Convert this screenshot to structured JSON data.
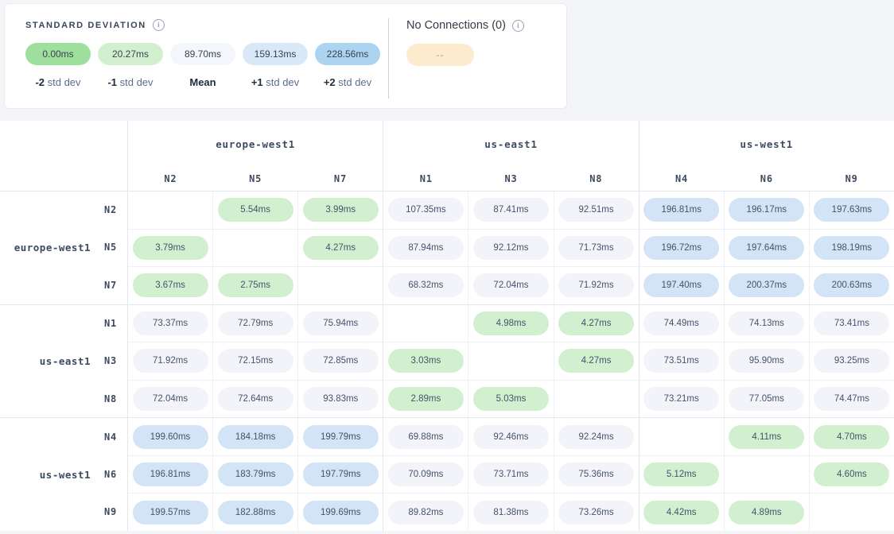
{
  "legend_card": {
    "std_dev": {
      "title": "STANDARD DEVIATION",
      "info_icon": "i",
      "steps": [
        {
          "value": "0.00ms",
          "color": "#9edf9e",
          "label_bold": "-2",
          "label_rest": " std dev"
        },
        {
          "value": "20.27ms",
          "color": "#d2f0cf",
          "label_bold": "-1",
          "label_rest": " std dev"
        },
        {
          "value": "89.70ms",
          "color": "#f3f6fb",
          "label_bold": "Mean",
          "label_rest": ""
        },
        {
          "value": "159.13ms",
          "color": "#d8e8f6",
          "label_bold": "+1",
          "label_rest": " std dev"
        },
        {
          "value": "228.56ms",
          "color": "#acd3f0",
          "label_bold": "+2",
          "label_rest": " std dev"
        }
      ]
    },
    "no_connections": {
      "title": "No Connections (0)",
      "info_icon": "i",
      "pill_text": "--",
      "pill_color": "#fcebcd"
    }
  },
  "matrix": {
    "unit": "ms",
    "cell_colors": {
      "g": "#d2f0cf",
      "n": "#f2f4f9",
      "b": "#d2e4f5"
    },
    "groups": [
      {
        "region": "europe-west1",
        "nodes": [
          "N2",
          "N5",
          "N7"
        ]
      },
      {
        "region": "us-east1",
        "nodes": [
          "N1",
          "N3",
          "N8"
        ]
      },
      {
        "region": "us-west1",
        "nodes": [
          "N4",
          "N6",
          "N9"
        ]
      }
    ],
    "rows": [
      {
        "region": "europe-west1",
        "node": "N2",
        "cells": [
          null,
          [
            "5.54ms",
            "g"
          ],
          [
            "3.99ms",
            "g"
          ],
          [
            "107.35ms",
            "n"
          ],
          [
            "87.41ms",
            "n"
          ],
          [
            "92.51ms",
            "n"
          ],
          [
            "196.81ms",
            "b"
          ],
          [
            "196.17ms",
            "b"
          ],
          [
            "197.63ms",
            "b"
          ]
        ]
      },
      {
        "region": "europe-west1",
        "node": "N5",
        "cells": [
          [
            "3.79ms",
            "g"
          ],
          null,
          [
            "4.27ms",
            "g"
          ],
          [
            "87.94ms",
            "n"
          ],
          [
            "92.12ms",
            "n"
          ],
          [
            "71.73ms",
            "n"
          ],
          [
            "196.72ms",
            "b"
          ],
          [
            "197.64ms",
            "b"
          ],
          [
            "198.19ms",
            "b"
          ]
        ]
      },
      {
        "region": "europe-west1",
        "node": "N7",
        "cells": [
          [
            "3.67ms",
            "g"
          ],
          [
            "2.75ms",
            "g"
          ],
          null,
          [
            "68.32ms",
            "n"
          ],
          [
            "72.04ms",
            "n"
          ],
          [
            "71.92ms",
            "n"
          ],
          [
            "197.40ms",
            "b"
          ],
          [
            "200.37ms",
            "b"
          ],
          [
            "200.63ms",
            "b"
          ]
        ]
      },
      {
        "region": "us-east1",
        "node": "N1",
        "cells": [
          [
            "73.37ms",
            "n"
          ],
          [
            "72.79ms",
            "n"
          ],
          [
            "75.94ms",
            "n"
          ],
          null,
          [
            "4.98ms",
            "g"
          ],
          [
            "4.27ms",
            "g"
          ],
          [
            "74.49ms",
            "n"
          ],
          [
            "74.13ms",
            "n"
          ],
          [
            "73.41ms",
            "n"
          ]
        ]
      },
      {
        "region": "us-east1",
        "node": "N3",
        "cells": [
          [
            "71.92ms",
            "n"
          ],
          [
            "72.15ms",
            "n"
          ],
          [
            "72.85ms",
            "n"
          ],
          [
            "3.03ms",
            "g"
          ],
          null,
          [
            "4.27ms",
            "g"
          ],
          [
            "73.51ms",
            "n"
          ],
          [
            "95.90ms",
            "n"
          ],
          [
            "93.25ms",
            "n"
          ]
        ]
      },
      {
        "region": "us-east1",
        "node": "N8",
        "cells": [
          [
            "72.04ms",
            "n"
          ],
          [
            "72.64ms",
            "n"
          ],
          [
            "93.83ms",
            "n"
          ],
          [
            "2.89ms",
            "g"
          ],
          [
            "5.03ms",
            "g"
          ],
          null,
          [
            "73.21ms",
            "n"
          ],
          [
            "77.05ms",
            "n"
          ],
          [
            "74.47ms",
            "n"
          ]
        ]
      },
      {
        "region": "us-west1",
        "node": "N4",
        "cells": [
          [
            "199.60ms",
            "b"
          ],
          [
            "184.18ms",
            "b"
          ],
          [
            "199.79ms",
            "b"
          ],
          [
            "69.88ms",
            "n"
          ],
          [
            "92.46ms",
            "n"
          ],
          [
            "92.24ms",
            "n"
          ],
          null,
          [
            "4.11ms",
            "g"
          ],
          [
            "4.70ms",
            "g"
          ]
        ]
      },
      {
        "region": "us-west1",
        "node": "N6",
        "cells": [
          [
            "196.81ms",
            "b"
          ],
          [
            "183.79ms",
            "b"
          ],
          [
            "197.79ms",
            "b"
          ],
          [
            "70.09ms",
            "n"
          ],
          [
            "73.71ms",
            "n"
          ],
          [
            "75.36ms",
            "n"
          ],
          [
            "5.12ms",
            "g"
          ],
          null,
          [
            "4.60ms",
            "g"
          ]
        ]
      },
      {
        "region": "us-west1",
        "node": "N9",
        "cells": [
          [
            "199.57ms",
            "b"
          ],
          [
            "182.88ms",
            "b"
          ],
          [
            "199.69ms",
            "b"
          ],
          [
            "89.82ms",
            "n"
          ],
          [
            "81.38ms",
            "n"
          ],
          [
            "73.26ms",
            "n"
          ],
          [
            "4.42ms",
            "g"
          ],
          [
            "4.89ms",
            "g"
          ],
          null
        ]
      }
    ]
  }
}
